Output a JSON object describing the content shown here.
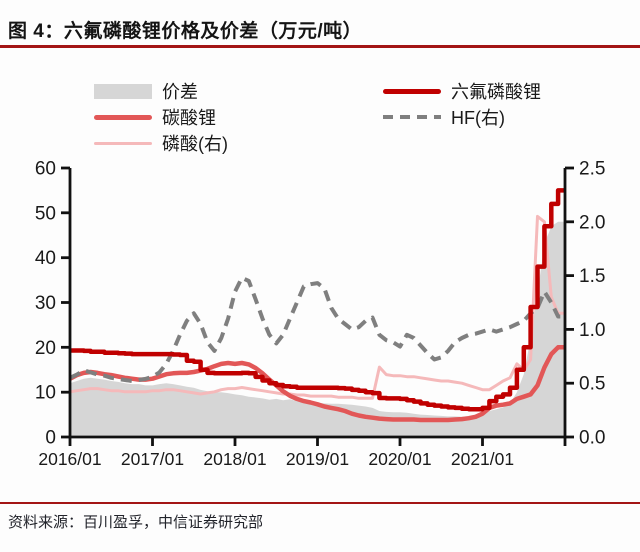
{
  "figure": {
    "title": "图 4：六氟磷酸锂价格及价差（万元/吨）",
    "source": "资料来源：百川盈孚，中信证券研究部"
  },
  "legend": {
    "spread": "价差",
    "lithium_carbonate": "碳酸锂",
    "phosphoric_acid": "磷酸(右)",
    "lipf6": "六氟磷酸锂",
    "hf": "HF(右)"
  },
  "colors": {
    "spread": "#d6d6d6",
    "lithium_carbonate": "#e25757",
    "phosphoric_acid": "#f5b9ba",
    "lipf6": "#c00000",
    "hf": "#7f7f7f",
    "rule": "#a31515",
    "axis": "#111111",
    "text": "#1a1a1a"
  },
  "chart_data": {
    "type": "combo-line-area",
    "title": "六氟磷酸锂价格及价差（万元/吨）",
    "x_start": "2016/01",
    "x_end": "2021/12",
    "x_frequency": "monthly",
    "x_slots": 72,
    "x_tick_labels": [
      "2016/01",
      "2017/01",
      "2018/01",
      "2019/01",
      "2020/01",
      "2021/01"
    ],
    "x_tick_indices": [
      0,
      12,
      24,
      36,
      48,
      60,
      72
    ],
    "left_axis": {
      "min": 0,
      "max": 60,
      "ticks": [
        0,
        10,
        20,
        30,
        40,
        50,
        60
      ]
    },
    "right_axis": {
      "min": 0,
      "max": 2.5,
      "ticks": [
        "0.0",
        "0.5",
        "1.0",
        "1.5",
        "2.0",
        "2.5"
      ]
    },
    "grid": false,
    "legend_position": "top",
    "series": [
      {
        "name": "价差",
        "kind": "area",
        "axis": "left",
        "color": "spread",
        "interpolation": "linear",
        "values": [
          12.0,
          12.5,
          13.0,
          13.2,
          13.0,
          12.8,
          12.5,
          12.3,
          12.0,
          11.8,
          11.8,
          11.5,
          11.5,
          11.8,
          12.0,
          11.8,
          11.5,
          11.2,
          11.0,
          10.5,
          10.2,
          10.0,
          10.0,
          9.8,
          9.5,
          9.3,
          9.0,
          8.8,
          8.6,
          8.3,
          8.5,
          8.2,
          8.4,
          8.0,
          7.8,
          7.7,
          7.6,
          7.5,
          7.4,
          7.4,
          7.3,
          7.2,
          7.0,
          6.8,
          6.5,
          5.8,
          5.6,
          5.5,
          5.5,
          5.4,
          5.2,
          5.0,
          4.9,
          4.8,
          4.7,
          4.6,
          4.6,
          4.5,
          4.5,
          4.6,
          5.0,
          5.8,
          6.2,
          6.6,
          7.5,
          10.0,
          14.0,
          22.0,
          32.0,
          43.0,
          47.0,
          48.0
        ]
      },
      {
        "name": "磷酸(右)",
        "kind": "line",
        "axis": "right",
        "color": "phosphoric_acid",
        "width": 3,
        "interpolation": "linear",
        "values": [
          0.42,
          0.43,
          0.44,
          0.45,
          0.45,
          0.44,
          0.43,
          0.43,
          0.42,
          0.42,
          0.42,
          0.42,
          0.43,
          0.43,
          0.44,
          0.44,
          0.43,
          0.42,
          0.41,
          0.4,
          0.41,
          0.42,
          0.44,
          0.45,
          0.45,
          0.46,
          0.45,
          0.44,
          0.43,
          0.42,
          0.41,
          0.4,
          0.4,
          0.39,
          0.39,
          0.38,
          0.38,
          0.38,
          0.38,
          0.37,
          0.37,
          0.37,
          0.36,
          0.36,
          0.36,
          0.65,
          0.58,
          0.57,
          0.57,
          0.56,
          0.56,
          0.55,
          0.54,
          0.53,
          0.52,
          0.52,
          0.51,
          0.5,
          0.48,
          0.46,
          0.44,
          0.44,
          0.48,
          0.52,
          0.55,
          0.68,
          0.62,
          0.72,
          2.05,
          2.0,
          1.3,
          1.15
        ]
      },
      {
        "name": "碳酸锂",
        "kind": "line",
        "axis": "left",
        "color": "lithium_carbonate",
        "width": 4.5,
        "interpolation": "linear",
        "values": [
          13.0,
          13.8,
          14.3,
          14.5,
          14.3,
          14.0,
          13.8,
          13.5,
          13.2,
          13.0,
          12.8,
          12.8,
          13.0,
          13.5,
          14.0,
          14.2,
          14.3,
          14.3,
          14.5,
          14.8,
          15.2,
          15.8,
          16.3,
          16.5,
          16.3,
          16.5,
          16.2,
          15.4,
          14.2,
          12.8,
          11.5,
          10.2,
          9.2,
          8.5,
          8.0,
          7.7,
          7.3,
          6.8,
          6.5,
          6.2,
          5.8,
          5.2,
          4.8,
          4.5,
          4.3,
          4.1,
          4.0,
          3.9,
          3.9,
          3.9,
          3.9,
          3.8,
          3.8,
          3.8,
          3.8,
          3.8,
          3.9,
          4.0,
          4.2,
          4.5,
          5.2,
          6.5,
          7.0,
          7.2,
          7.5,
          8.5,
          9.0,
          9.5,
          11.5,
          15.5,
          18.5,
          20.0
        ]
      },
      {
        "name": "HF(右)",
        "kind": "line",
        "axis": "right",
        "color": "hf",
        "width": 4,
        "dash": "11 7",
        "interpolation": "linear",
        "values": [
          0.55,
          0.58,
          0.62,
          0.6,
          0.58,
          0.57,
          0.55,
          0.54,
          0.53,
          0.52,
          0.53,
          0.54,
          0.56,
          0.6,
          0.68,
          0.8,
          0.95,
          1.08,
          1.15,
          1.05,
          0.88,
          0.8,
          0.92,
          1.1,
          1.35,
          1.48,
          1.45,
          1.28,
          1.1,
          0.95,
          0.87,
          0.95,
          1.1,
          1.25,
          1.4,
          1.42,
          1.43,
          1.38,
          1.2,
          1.1,
          1.05,
          1.0,
          1.02,
          1.08,
          1.11,
          0.95,
          0.9,
          0.88,
          0.84,
          0.95,
          0.92,
          0.85,
          0.78,
          0.72,
          0.74,
          0.8,
          0.88,
          0.92,
          0.95,
          0.96,
          0.98,
          1.0,
          0.98,
          1.0,
          1.02,
          1.05,
          1.08,
          1.15,
          1.2,
          1.35,
          1.25,
          1.12
        ]
      },
      {
        "name": "六氟磷酸锂",
        "kind": "line",
        "axis": "left",
        "color": "lipf6",
        "width": 4.5,
        "interpolation": "step",
        "values": [
          19.3,
          19.3,
          19.2,
          19.0,
          19.0,
          18.8,
          18.8,
          18.7,
          18.6,
          18.5,
          18.5,
          18.5,
          18.5,
          18.5,
          18.5,
          18.4,
          18.3,
          17.0,
          16.8,
          15.0,
          14.3,
          14.2,
          14.2,
          14.2,
          14.2,
          14.3,
          14.2,
          13.4,
          12.6,
          12.0,
          11.6,
          11.3,
          11.2,
          11.0,
          11.0,
          11.0,
          11.0,
          11.0,
          11.0,
          10.9,
          10.8,
          10.5,
          10.3,
          10.0,
          9.8,
          8.7,
          8.6,
          8.6,
          8.5,
          8.2,
          7.9,
          7.5,
          7.2,
          7.0,
          6.8,
          6.6,
          6.5,
          6.3,
          6.2,
          6.2,
          6.5,
          8.0,
          9.0,
          9.5,
          11.0,
          15.0,
          20.0,
          29.0,
          38.0,
          47.0,
          52.0,
          55.0
        ]
      }
    ]
  }
}
